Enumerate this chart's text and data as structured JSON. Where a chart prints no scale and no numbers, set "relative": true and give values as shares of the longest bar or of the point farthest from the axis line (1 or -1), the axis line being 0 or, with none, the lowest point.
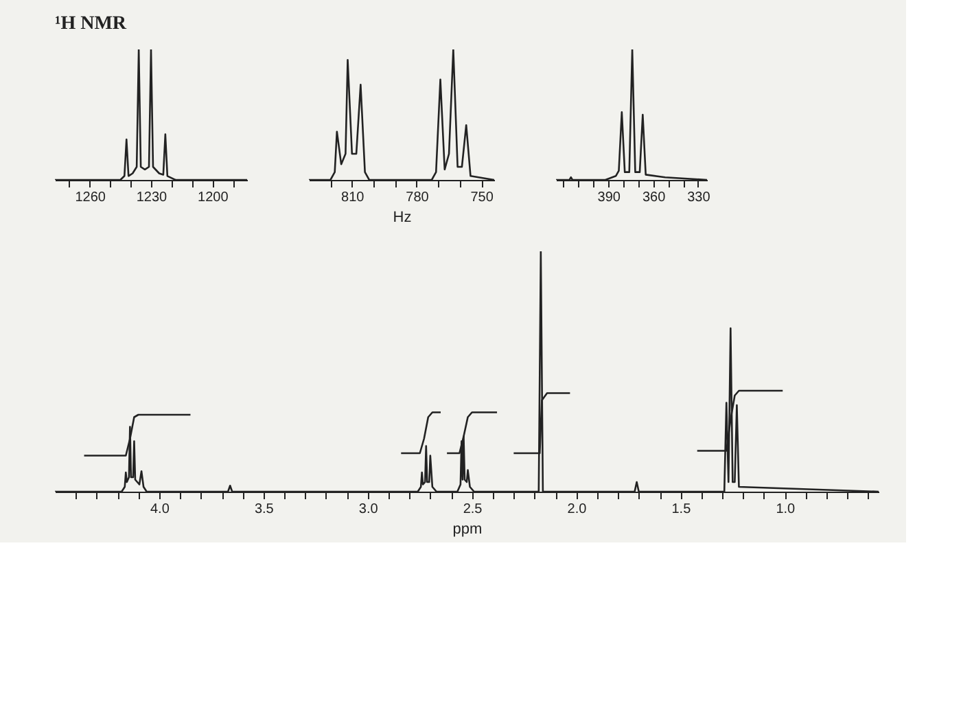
{
  "chart_data": [
    {
      "type": "line",
      "relative": true,
      "tick_labels": "x",
      "grid": false,
      "legend": false,
      "marker": "none",
      "line_style": "solid",
      "title": "¹H NMR",
      "xlim": [
        1277,
        1183
      ],
      "xticks": [
        {
          "value": 1270,
          "label": null
        },
        {
          "value": 1260,
          "label": "1260"
        },
        {
          "value": 1250,
          "label": null
        },
        {
          "value": 1240,
          "label": null
        },
        {
          "value": 1230,
          "label": "1230"
        },
        {
          "value": 1220,
          "label": null
        },
        {
          "value": 1210,
          "label": null
        },
        {
          "value": 1200,
          "label": "1200"
        },
        {
          "value": 1190,
          "label": null
        }
      ],
      "series": [
        {
          "color": "#222222",
          "x": [
            1277,
            1245,
            1243,
            1242,
            1241,
            1239,
            1237,
            1236,
            1235,
            1233,
            1231,
            1230,
            1229,
            1226,
            1224,
            1223,
            1222,
            1218,
            1183
          ],
          "values": [
            0,
            0,
            0.03,
            0.31,
            0.03,
            0.05,
            0.1,
            1,
            0.1,
            0.08,
            0.1,
            1,
            0.1,
            0.05,
            0.04,
            0.35,
            0.03,
            0,
            0
          ]
        }
      ]
    },
    {
      "type": "line",
      "relative": true,
      "tick_labels": "x",
      "grid": false,
      "legend": false,
      "marker": "none",
      "line_style": "solid",
      "xlabel": "Hz",
      "xlim": [
        830,
        744
      ],
      "xticks": [
        {
          "value": 820,
          "label": null
        },
        {
          "value": 810,
          "label": "810"
        },
        {
          "value": 800,
          "label": null
        },
        {
          "value": 790,
          "label": null
        },
        {
          "value": 780,
          "label": "780"
        },
        {
          "value": 770,
          "label": null
        },
        {
          "value": 760,
          "label": null
        },
        {
          "value": 750,
          "label": "750"
        }
      ],
      "series": [
        {
          "color": "#222222",
          "x": [
            830,
            820,
            818,
            817,
            815,
            813,
            812,
            810,
            808,
            806,
            804,
            802,
            773,
            771,
            769,
            767,
            765,
            763,
            761,
            759,
            757,
            755,
            744
          ],
          "values": [
            0,
            0,
            0.06,
            0.37,
            0.12,
            0.2,
            0.92,
            0.2,
            0.2,
            0.73,
            0.06,
            0,
            0,
            0.06,
            0.77,
            0.08,
            0.2,
            1,
            0.1,
            0.1,
            0.42,
            0.03,
            0
          ]
        }
      ]
    },
    {
      "type": "line",
      "relative": true,
      "tick_labels": "x",
      "grid": false,
      "legend": false,
      "marker": "none",
      "line_style": "solid",
      "xlim": [
        425,
        324
      ],
      "xticks": [
        {
          "value": 420,
          "label": null
        },
        {
          "value": 410,
          "label": null
        },
        {
          "value": 400,
          "label": null
        },
        {
          "value": 390,
          "label": "390"
        },
        {
          "value": 380,
          "label": null
        },
        {
          "value": 370,
          "label": null
        },
        {
          "value": 360,
          "label": "360"
        },
        {
          "value": 350,
          "label": null
        },
        {
          "value": 340,
          "label": null
        },
        {
          "value": 330,
          "label": "330"
        }
      ],
      "series": [
        {
          "color": "#222222",
          "x": [
            425,
            416,
            415,
            414,
            392,
            385,
            383,
            381,
            379,
            376,
            374,
            372,
            369,
            367,
            365,
            352,
            324
          ],
          "values": [
            0,
            0,
            0.02,
            0,
            0,
            0.03,
            0.07,
            0.52,
            0.06,
            0.06,
            1,
            0.06,
            0.06,
            0.5,
            0.04,
            0.02,
            0
          ]
        }
      ]
    },
    {
      "type": "line",
      "relative": true,
      "tick_labels": "x",
      "grid": false,
      "legend": false,
      "marker": "none",
      "line_style": "solid",
      "xlabel": "ppm",
      "xlim": [
        4.5,
        0.55
      ],
      "xticks": [
        {
          "value": 4.4,
          "label": null
        },
        {
          "value": 4.3,
          "label": null
        },
        {
          "value": 4.2,
          "label": null
        },
        {
          "value": 4.1,
          "label": null
        },
        {
          "value": 4.0,
          "label": "4.0"
        },
        {
          "value": 3.9,
          "label": null
        },
        {
          "value": 3.8,
          "label": null
        },
        {
          "value": 3.7,
          "label": null
        },
        {
          "value": 3.6,
          "label": null
        },
        {
          "value": 3.5,
          "label": "3.5"
        },
        {
          "value": 3.4,
          "label": null
        },
        {
          "value": 3.3,
          "label": null
        },
        {
          "value": 3.2,
          "label": null
        },
        {
          "value": 3.1,
          "label": null
        },
        {
          "value": 3.0,
          "label": "3.0"
        },
        {
          "value": 2.9,
          "label": null
        },
        {
          "value": 2.8,
          "label": null
        },
        {
          "value": 2.7,
          "label": null
        },
        {
          "value": 2.6,
          "label": null
        },
        {
          "value": 2.5,
          "label": "2.5"
        },
        {
          "value": 2.4,
          "label": null
        },
        {
          "value": 2.3,
          "label": null
        },
        {
          "value": 2.2,
          "label": null
        },
        {
          "value": 2.1,
          "label": null
        },
        {
          "value": 2.0,
          "label": "2.0"
        },
        {
          "value": 1.9,
          "label": null
        },
        {
          "value": 1.8,
          "label": null
        },
        {
          "value": 1.7,
          "label": null
        },
        {
          "value": 1.6,
          "label": null
        },
        {
          "value": 1.5,
          "label": "1.5"
        },
        {
          "value": 1.4,
          "label": null
        },
        {
          "value": 1.3,
          "label": null
        },
        {
          "value": 1.2,
          "label": null
        },
        {
          "value": 1.1,
          "label": null
        },
        {
          "value": 1.0,
          "label": "1.0"
        },
        {
          "value": 0.9,
          "label": null
        },
        {
          "value": 0.8,
          "label": null
        },
        {
          "value": 0.7,
          "label": null
        },
        {
          "value": 0.6,
          "label": null
        }
      ],
      "series": [
        {
          "color": "#222222",
          "x": [
            4.5,
            4.18,
            4.165,
            4.16,
            4.155,
            4.145,
            4.14,
            4.135,
            4.125,
            4.12,
            4.115,
            4.095,
            4.085,
            4.075,
            4.06,
            3.67,
            3.66,
            3.65,
            2.76,
            2.745,
            2.74,
            2.735,
            2.725,
            2.72,
            2.715,
            2.705,
            2.7,
            2.69,
            2.67,
            2.57,
            2.555,
            2.55,
            2.545,
            2.54,
            2.535,
            2.525,
            2.52,
            2.51,
            2.49,
            2.18,
            2.17,
            2.16,
            1.72,
            1.71,
            1.7,
            1.29,
            1.28,
            1.27,
            1.26,
            1.25,
            1.24,
            1.23,
            1.22,
            0.55
          ],
          "values": [
            0,
            0,
            0.02,
            0.08,
            0.04,
            0.06,
            0.27,
            0.06,
            0.06,
            0.21,
            0.05,
            0.03,
            0.085,
            0.02,
            0,
            0,
            0.025,
            0,
            0,
            0.02,
            0.08,
            0.03,
            0.04,
            0.19,
            0.04,
            0.04,
            0.15,
            0.02,
            0,
            0,
            0.03,
            0.21,
            0.05,
            0.23,
            0.05,
            0.04,
            0.09,
            0.02,
            0,
            0,
            1,
            0,
            0,
            0.04,
            0,
            0,
            0.37,
            0.04,
            0.68,
            0.04,
            0.04,
            0.36,
            0.02,
            0
          ]
        },
        {
          "color": "#222222",
          "x": [
            4.36,
            4.16,
            4.14,
            4.12,
            4.1,
            3.85
          ],
          "values": [
            0.15,
            0.15,
            0.22,
            0.31,
            0.32,
            0.32
          ]
        },
        {
          "color": "#222222",
          "x": [
            2.84,
            2.75,
            2.73,
            2.71,
            2.69,
            2.65
          ],
          "values": [
            0.16,
            0.16,
            0.22,
            0.31,
            0.33,
            0.33
          ]
        },
        {
          "color": "#222222",
          "x": [
            2.62,
            2.56,
            2.54,
            2.52,
            2.5,
            2.38
          ],
          "values": [
            0.16,
            0.16,
            0.23,
            0.31,
            0.33,
            0.33
          ]
        },
        {
          "color": "#222222",
          "x": [
            2.3,
            2.175,
            2.165,
            2.14,
            2.03
          ],
          "values": [
            0.16,
            0.16,
            0.38,
            0.41,
            0.41
          ]
        },
        {
          "color": "#222222",
          "x": [
            1.42,
            1.28,
            1.26,
            1.24,
            1.22,
            1.01
          ],
          "values": [
            0.17,
            0.17,
            0.3,
            0.4,
            0.42,
            0.42
          ]
        }
      ]
    }
  ]
}
